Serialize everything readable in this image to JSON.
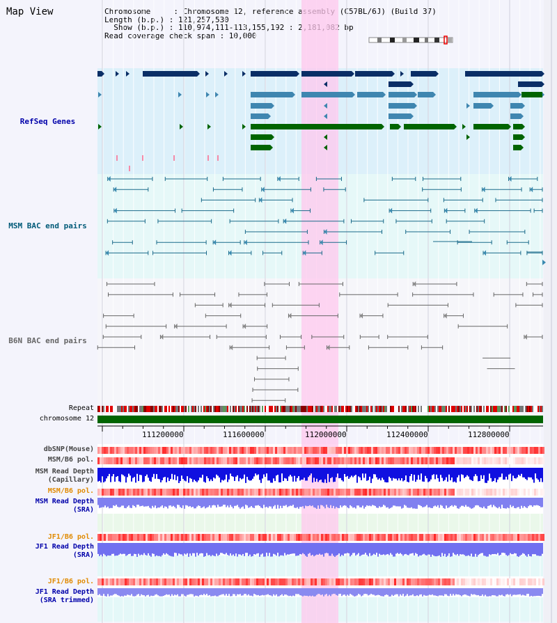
{
  "title": "Map View",
  "info": {
    "line1": "Chromosome     : Chromosome 12, reference assembly (C57BL/6J) (Build 37)",
    "line2": "Length (b.p.) : 121,257,530",
    "line3": "  Show (b.p.) : 110,974,111-113,155,192 : 2,181,082 bp",
    "line4": "Read coverage check span : 10,000"
  },
  "tracks": {
    "refseq": "RefSeq Genes",
    "msm_bac": "MSM BAC end pairs",
    "b6n_bac": "B6N BAC end pairs",
    "repeat": "Repeat",
    "chromosome": "chromosome 12",
    "dbsnp": "dbSNP(Mouse)",
    "msm_b6_pol1": "MSM/B6 pol.",
    "msm_depth_cap_1": "MSM Read Depth",
    "msm_depth_cap_2": "(Capillary)",
    "msm_b6_pol2": "MSM/B6 pol.",
    "msm_depth_sra_1": "MSM Read Depth",
    "msm_depth_sra_2": "(SRA)",
    "jf1_b6_pol1": "JF1/B6 pol.",
    "jf1_depth_sra_1": "JF1 Read Depth",
    "jf1_depth_sra_2": "(SRA)",
    "jf1_b6_pol2": "JF1/B6 pol.",
    "jf1_depth_trim_1": "JF1 Read Depth",
    "jf1_depth_trim_2": "(SRA trimmed)"
  },
  "axis": {
    "ticks": [
      "111200000",
      "111600000",
      "112000000",
      "112400000",
      "112800000"
    ]
  },
  "colors": {
    "refseq_label": "#0000aa",
    "msm_bac_label": "#005a78",
    "b6n_bac_label": "#666666",
    "orange_label": "#e08a00",
    "blue_label": "#0000aa",
    "highlight": "#ffc8ee",
    "gene_navy": "#0a2e66",
    "gene_steel": "#3f86b0",
    "gene_green": "#006400",
    "chrom_green": "#006400"
  }
}
